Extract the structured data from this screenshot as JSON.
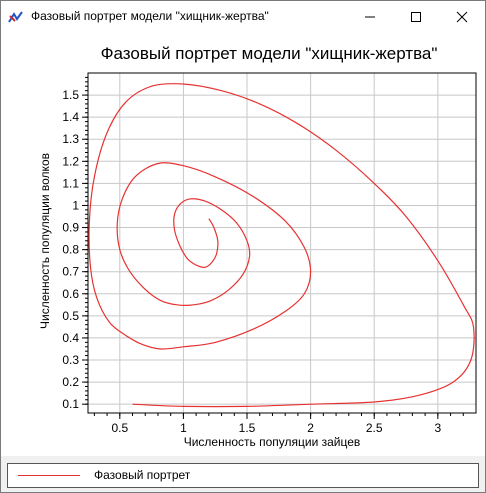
{
  "window": {
    "title": "Фазовый портрет модели \"хищник-жертва\"",
    "controls": [
      "minimize",
      "maximize",
      "close"
    ]
  },
  "legend": {
    "label": "Фазовый портрет",
    "color": "#e83232"
  },
  "chart_data": {
    "type": "line",
    "title": "Фазовый портрет модели \"хищник-жертва\"",
    "xlabel": "Численность популяции зайцев",
    "ylabel": "Численность популяции волков",
    "xlim": [
      0.25,
      3.3
    ],
    "ylim": [
      0.06,
      1.6
    ],
    "xticks": [
      0.5,
      1,
      1.5,
      2,
      2.5,
      3
    ],
    "xtick_labels": [
      "0.5",
      "1",
      "1.5",
      "2",
      "2.5",
      "3"
    ],
    "yticks": [
      0.1,
      0.2,
      0.3,
      0.4,
      0.5,
      0.6,
      0.7,
      0.8,
      0.9,
      1,
      1.1,
      1.2,
      1.3,
      1.4,
      1.5
    ],
    "ytick_labels": [
      "0.1",
      "0.2",
      "0.3",
      "0.4",
      "0.5",
      "0.6",
      "0.7",
      "0.8",
      "0.9",
      "1",
      "1.1",
      "1.2",
      "1.3",
      "1.4",
      "1.5"
    ],
    "grid": true,
    "legend_position": "bottom",
    "series": [
      {
        "name": "Фазовый портрет",
        "color": "#e83232",
        "x": [
          0.6,
          1.0,
          1.5,
          2.0,
          2.5,
          2.85,
          3.12,
          3.26,
          3.28,
          3.2,
          3.0,
          2.75,
          2.5,
          2.2,
          1.9,
          1.6,
          1.3,
          1.0,
          0.75,
          0.55,
          0.4,
          0.3,
          0.26,
          0.27,
          0.32,
          0.42,
          0.55,
          0.68,
          0.82,
          1.0,
          1.25,
          1.55,
          1.8,
          1.95,
          2.0,
          1.95,
          1.8,
          1.55,
          1.25,
          1.0,
          0.8,
          0.62,
          0.52,
          0.48,
          0.5,
          0.58,
          0.7,
          0.82,
          0.95,
          1.08,
          1.22,
          1.36,
          1.47,
          1.52,
          1.5,
          1.42,
          1.3,
          1.17,
          1.06,
          0.98,
          0.93,
          0.93,
          0.97,
          1.03,
          1.1,
          1.17,
          1.22,
          1.26,
          1.27,
          1.24,
          1.2
        ],
        "y": [
          0.1,
          0.09,
          0.09,
          0.1,
          0.11,
          0.14,
          0.2,
          0.3,
          0.45,
          0.55,
          0.75,
          0.95,
          1.1,
          1.25,
          1.37,
          1.46,
          1.52,
          1.55,
          1.54,
          1.47,
          1.33,
          1.13,
          0.92,
          0.72,
          0.58,
          0.47,
          0.41,
          0.37,
          0.35,
          0.36,
          0.38,
          0.44,
          0.52,
          0.6,
          0.7,
          0.81,
          0.93,
          1.04,
          1.13,
          1.18,
          1.19,
          1.13,
          1.03,
          0.92,
          0.8,
          0.7,
          0.62,
          0.57,
          0.55,
          0.55,
          0.57,
          0.62,
          0.69,
          0.77,
          0.84,
          0.92,
          0.98,
          1.02,
          1.03,
          1.01,
          0.96,
          0.89,
          0.82,
          0.76,
          0.73,
          0.72,
          0.74,
          0.78,
          0.84,
          0.9,
          0.94
        ]
      }
    ]
  }
}
